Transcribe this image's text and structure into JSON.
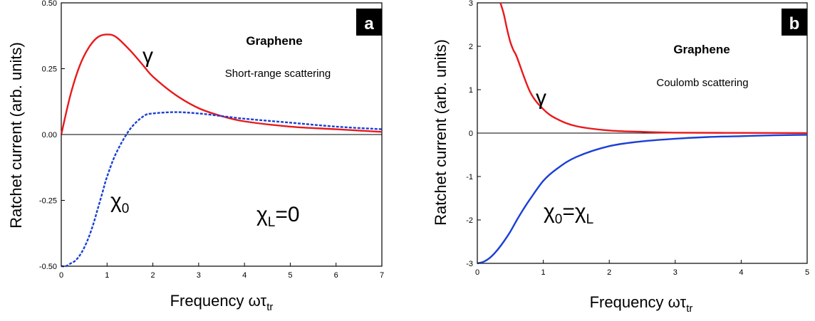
{
  "chart_data": [
    {
      "panel_label": "a",
      "type": "line",
      "title": "Graphene",
      "subtitle": "Short-range scattering",
      "xlabel": "Frequency ωτ",
      "xlabel_sub": "tr",
      "ylabel": "Ratchet current (arb. units)",
      "xlim": [
        0,
        7
      ],
      "ylim": [
        -0.5,
        0.5
      ],
      "x_ticks": [
        "0",
        "1",
        "2",
        "3",
        "4",
        "5",
        "6",
        "7"
      ],
      "y_ticks": [
        "-0.50",
        "-0.25",
        "0.00",
        "0.25",
        "0.50"
      ],
      "zero_line": true,
      "annotation": {
        "text": "χ",
        "sub": "L",
        "tail": "=0"
      },
      "series": [
        {
          "label": "γ",
          "color": "#e8191c",
          "dash": "solid",
          "x": [
            0,
            0.2,
            0.4,
            0.6,
            0.8,
            1.0,
            1.2,
            1.5,
            1.8,
            2.0,
            2.5,
            3.0,
            3.5,
            4.0,
            5.0,
            6.0,
            7.0
          ],
          "y": [
            0,
            0.15,
            0.26,
            0.33,
            0.37,
            0.38,
            0.37,
            0.32,
            0.26,
            0.22,
            0.15,
            0.1,
            0.07,
            0.05,
            0.03,
            0.02,
            0.01
          ]
        },
        {
          "label": "χ",
          "label_sub": "0",
          "color": "#1a3fd6",
          "dash": "dashed",
          "x": [
            0,
            0.1,
            0.2,
            0.3,
            0.4,
            0.5,
            0.6,
            0.7,
            0.8,
            0.9,
            1.0,
            1.2,
            1.5,
            1.8,
            2.0,
            2.5,
            3.0,
            3.5,
            4.0,
            5.0,
            6.0,
            7.0
          ],
          "y": [
            -0.5,
            -0.5,
            -0.49,
            -0.48,
            -0.46,
            -0.43,
            -0.39,
            -0.34,
            -0.28,
            -0.22,
            -0.16,
            -0.07,
            0.02,
            0.07,
            0.08,
            0.085,
            0.08,
            0.07,
            0.06,
            0.045,
            0.03,
            0.02
          ]
        }
      ]
    },
    {
      "panel_label": "b",
      "type": "line",
      "title": "Graphene",
      "subtitle": "Coulomb scattering",
      "xlabel": "Frequency ωτ",
      "xlabel_sub": "tr",
      "ylabel": "Ratchet current (arb. units)",
      "xlim": [
        0,
        5
      ],
      "ylim": [
        -3,
        3
      ],
      "x_ticks": [
        "0",
        "1",
        "2",
        "3",
        "4",
        "5"
      ],
      "y_ticks": [
        "-3",
        "-2",
        "-1",
        "0",
        "1",
        "2",
        "3"
      ],
      "zero_line": true,
      "series": [
        {
          "label": "γ",
          "color": "#e8191c",
          "dash": "solid",
          "x": [
            0.6,
            0.8,
            1.0,
            1.2,
            1.5,
            2.0,
            2.5,
            3.0,
            4.0,
            5.0
          ],
          "y": [
            1.75,
            0.95,
            0.55,
            0.33,
            0.16,
            0.06,
            0.03,
            0.01,
            0.005,
            0.0
          ],
          "x_steep": [
            0.35,
            0.4,
            0.45,
            0.5,
            0.55
          ],
          "y_steep": [
            3.0,
            2.75,
            2.4,
            2.1,
            1.9
          ]
        },
        {
          "label": "χ",
          "label_sub": "0",
          "label_tail": "=χ",
          "label_tail_sub": "L",
          "color": "#1a3fd6",
          "dash": "solid",
          "x": [
            0,
            0.1,
            0.2,
            0.3,
            0.4,
            0.5,
            0.6,
            0.7,
            0.8,
            1.0,
            1.2,
            1.5,
            2.0,
            2.5,
            3.0,
            3.5,
            4.0,
            4.5,
            5.0
          ],
          "y": [
            -3.0,
            -2.96,
            -2.86,
            -2.7,
            -2.5,
            -2.27,
            -2.0,
            -1.75,
            -1.52,
            -1.1,
            -0.83,
            -0.55,
            -0.3,
            -0.19,
            -0.13,
            -0.09,
            -0.07,
            -0.05,
            -0.04
          ]
        }
      ]
    }
  ]
}
